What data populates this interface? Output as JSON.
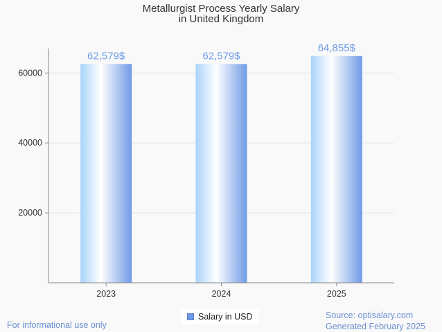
{
  "chart_data": {
    "type": "bar",
    "title_line1": "Metallurgist Process Yearly Salary",
    "title_line2": "in United Kingdom",
    "categories": [
      "2023",
      "2024",
      "2025"
    ],
    "series": [
      {
        "name": "Salary in USD",
        "values": [
          62579,
          62579,
          64855
        ],
        "labels": [
          "62,579$",
          "62,579$",
          "64,855$"
        ]
      }
    ],
    "yticks": [
      "20000",
      "40000",
      "60000"
    ],
    "ytick_values": [
      20000,
      40000,
      60000
    ],
    "ylim": [
      0,
      67000
    ],
    "grid": true,
    "legend_position": "bottom",
    "colors": {
      "bar_light": "#ffffff",
      "bar_mid": "#a9d4fb",
      "bar_dark": "#6f9be6",
      "data_label": "#6f9be6"
    }
  },
  "footer": {
    "disclaimer": "For informational use only",
    "source": "Source: optisalary.com",
    "generated": "Generated February 2025"
  }
}
